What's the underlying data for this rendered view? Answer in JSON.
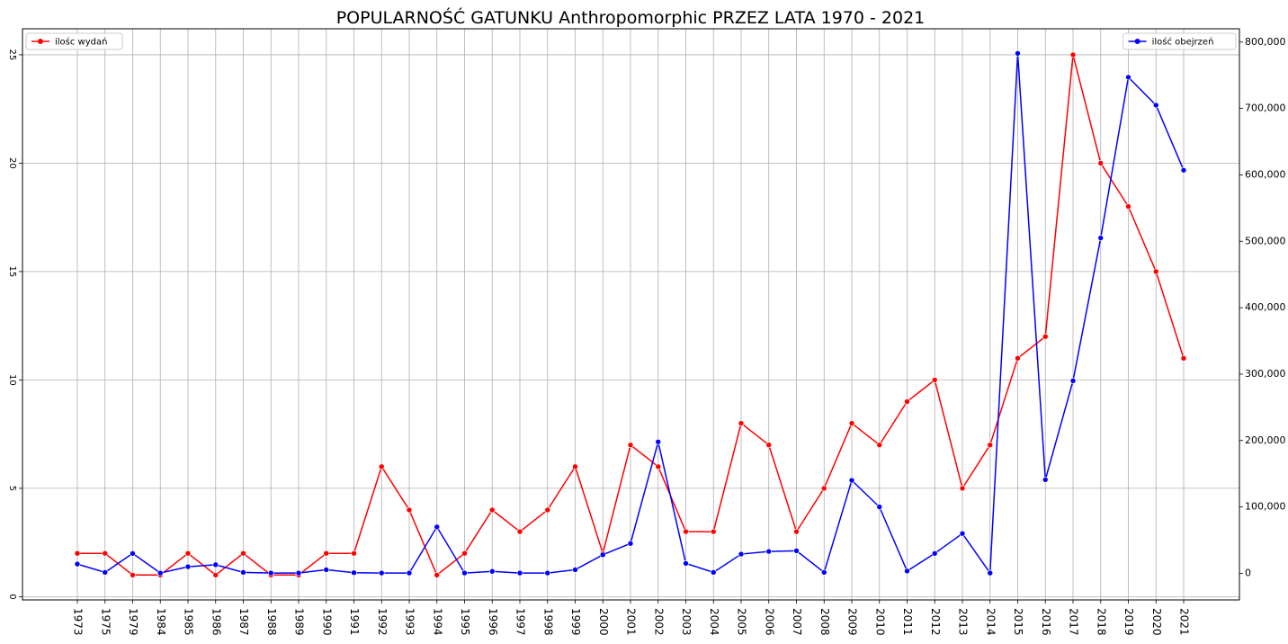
{
  "chart_data": {
    "type": "line",
    "title": "POPULARNOŚĆ GATUNKU Anthropomorphic PRZEZ LATA 1970 - 2021",
    "categories": [
      "1973",
      "1975",
      "1979",
      "1984",
      "1985",
      "1986",
      "1987",
      "1988",
      "1989",
      "1990",
      "1991",
      "1992",
      "1993",
      "1994",
      "1995",
      "1996",
      "1997",
      "1998",
      "1999",
      "2000",
      "2001",
      "2002",
      "2003",
      "2004",
      "2005",
      "2006",
      "2007",
      "2008",
      "2009",
      "2010",
      "2011",
      "2012",
      "2013",
      "2014",
      "2015",
      "2016",
      "2017",
      "2018",
      "2019",
      "2020",
      "2021"
    ],
    "grid": true,
    "left_axis": {
      "ylim": [
        -0.15,
        26.2
      ],
      "ticks": [
        0,
        5,
        10,
        15,
        20,
        25
      ],
      "tick_labels": [
        "0",
        "5",
        "10",
        "15",
        "20",
        "25"
      ]
    },
    "right_axis": {
      "ylim": [
        -40000,
        820000
      ],
      "ticks": [
        0,
        100000,
        200000,
        300000,
        400000,
        500000,
        600000,
        700000,
        800000
      ],
      "tick_labels": [
        "0",
        "100,000",
        "200,000",
        "300,000",
        "400,000",
        "500,000",
        "600,000",
        "700,000",
        "800,000"
      ]
    },
    "series": [
      {
        "name": "ilośc wydań",
        "axis": "left",
        "color": "#ff0000",
        "legend_position": "top-left",
        "values": [
          2,
          2,
          1,
          1,
          2,
          1,
          2,
          1,
          1,
          2,
          2,
          6,
          4,
          1,
          2,
          4,
          3,
          4,
          6,
          2,
          7,
          6,
          3,
          3,
          8,
          7,
          3,
          5,
          8,
          7,
          9,
          10,
          5,
          7,
          11,
          12,
          25,
          20,
          18,
          15,
          11
        ]
      },
      {
        "name": "ilość obejrzeń",
        "axis": "right",
        "color": "#0000ff",
        "legend_position": "top-right",
        "values": [
          14000,
          1500,
          30000,
          500,
          10000,
          13000,
          1500,
          500,
          500,
          5500,
          1000,
          500,
          500,
          70000,
          500,
          3000,
          500,
          500,
          5500,
          28000,
          45000,
          198000,
          15000,
          1500,
          29000,
          33000,
          34000,
          1500,
          140000,
          100000,
          3500,
          30000,
          60000,
          500,
          783000,
          141000,
          290000,
          505000,
          747000,
          705000,
          607000
        ]
      }
    ]
  }
}
